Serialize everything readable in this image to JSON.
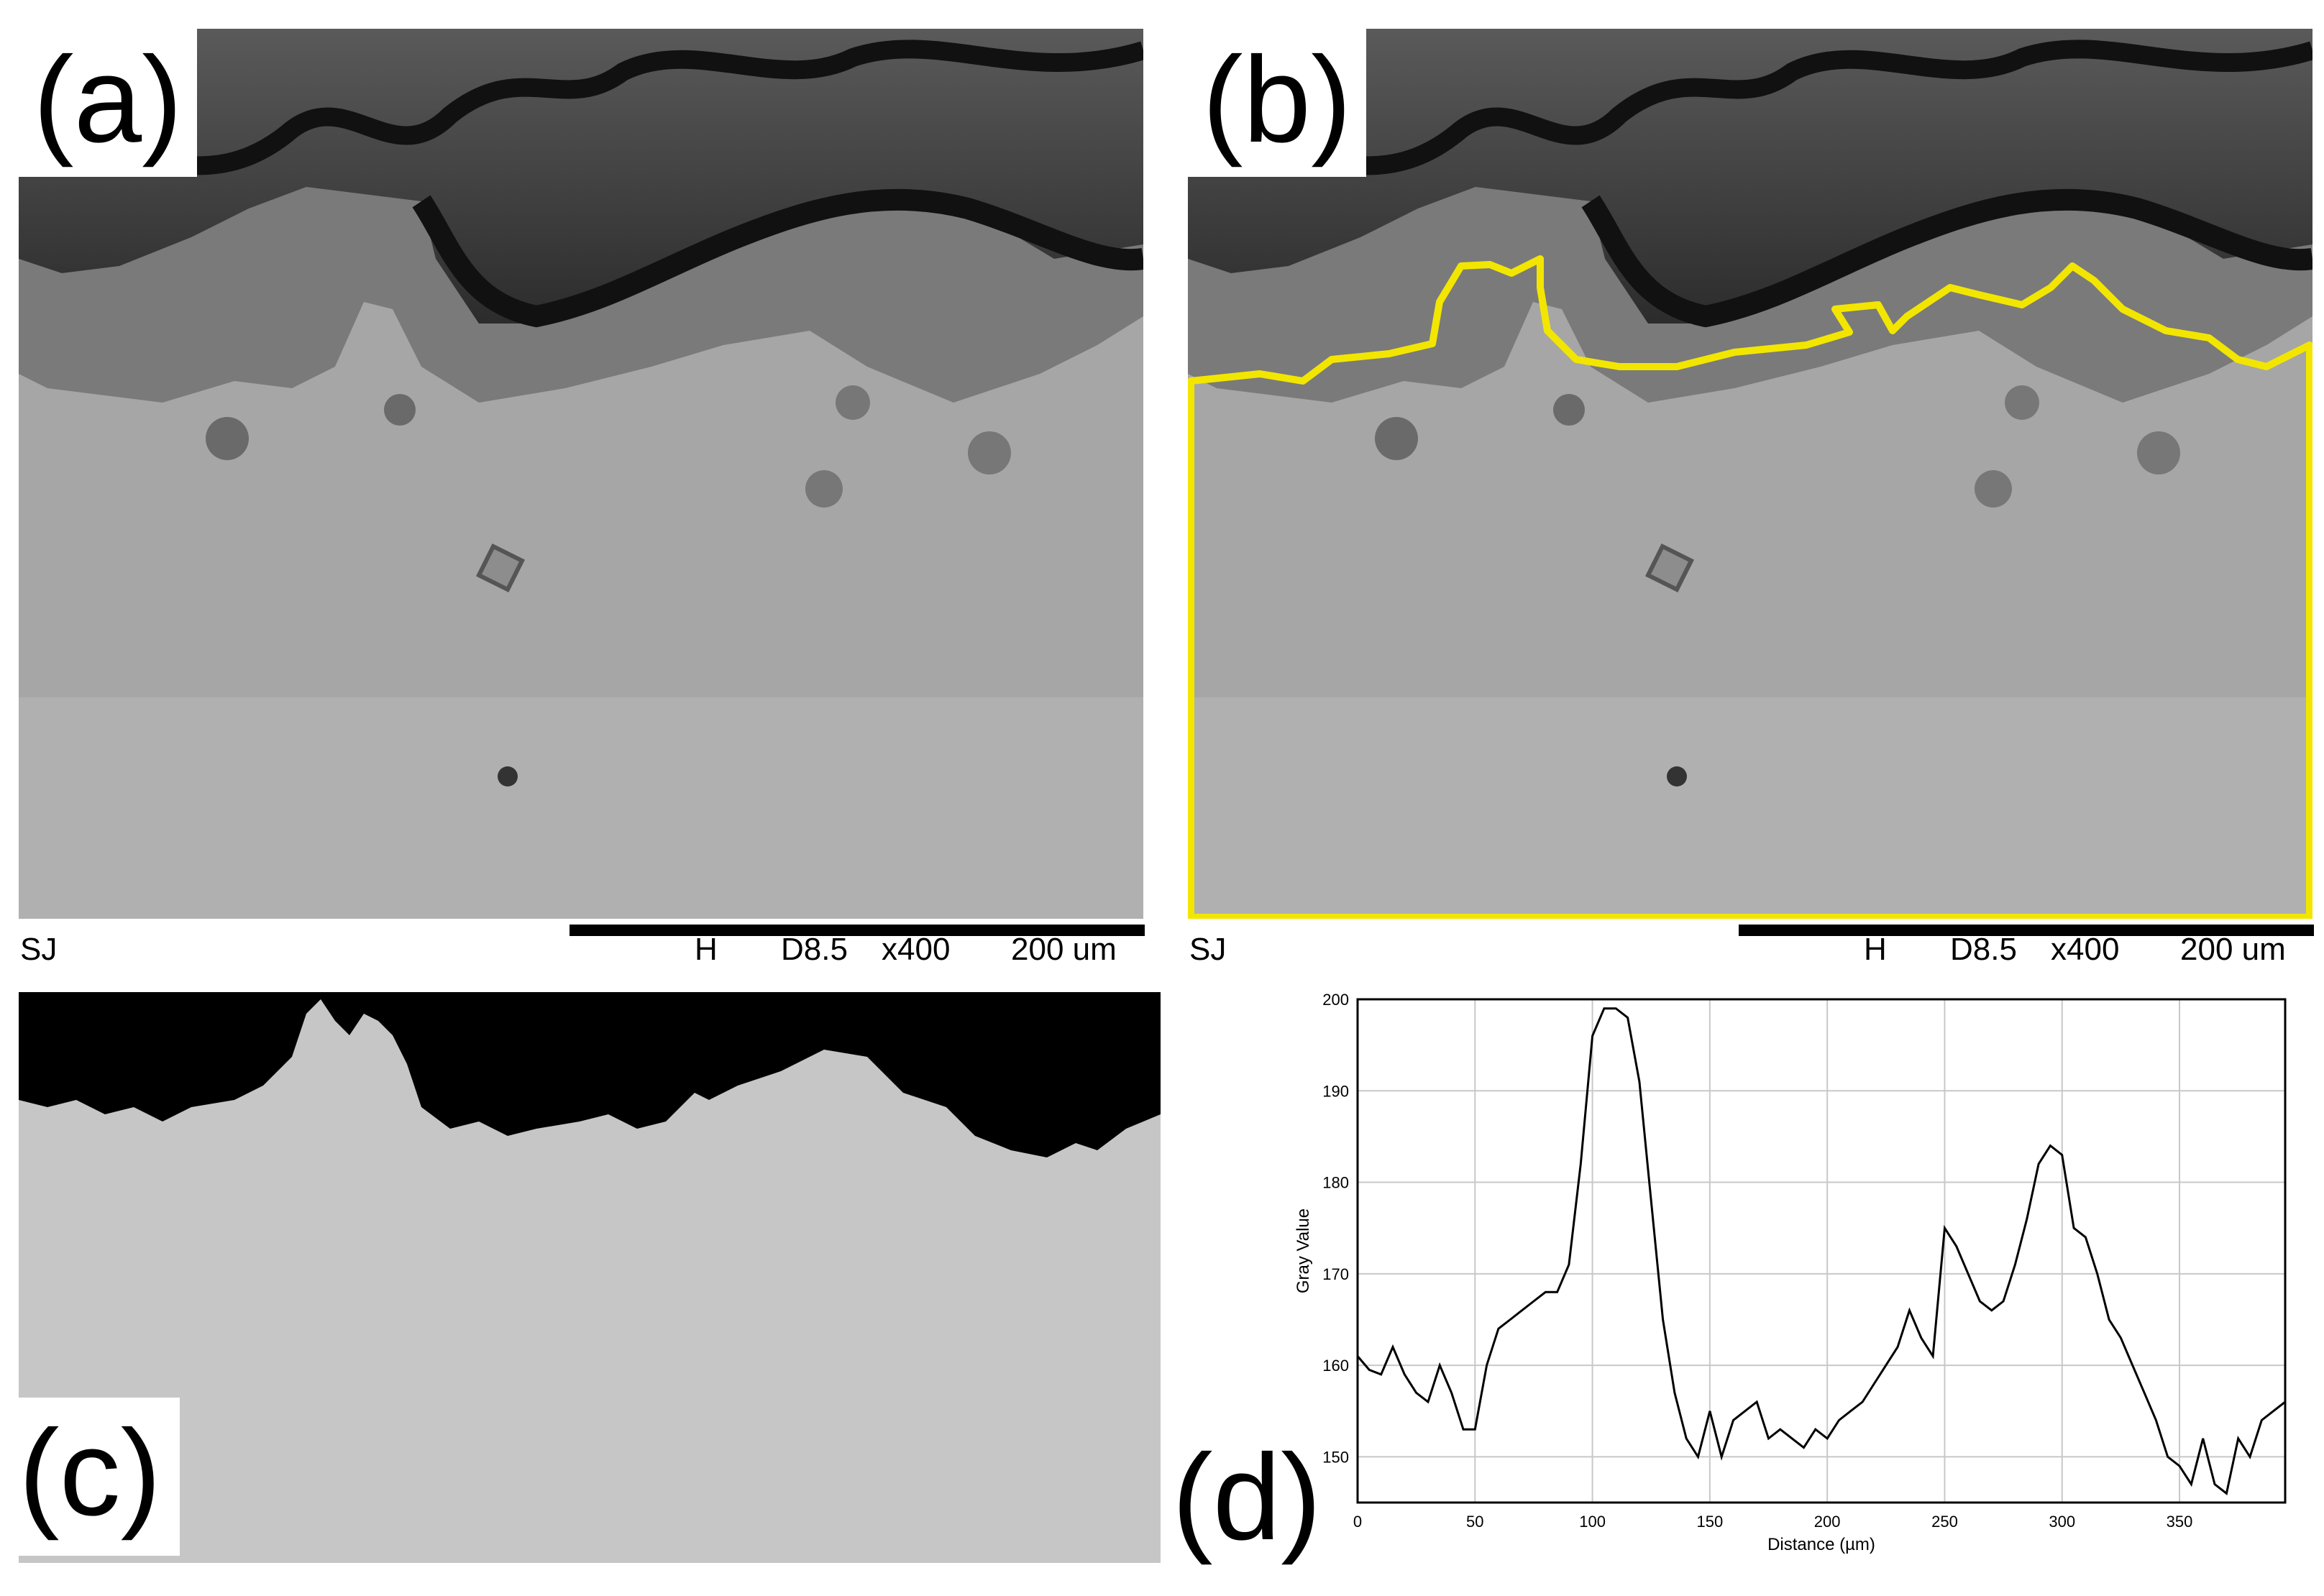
{
  "figure": {
    "panels": {
      "a": {
        "label": "(a)"
      },
      "b": {
        "label": "(b)"
      },
      "c": {
        "label": "(c)"
      },
      "d": {
        "label": "(d)"
      }
    },
    "sem_databar": {
      "left_text": "SJ",
      "mode": "H",
      "working_distance": "D8.5",
      "magnification": "x400",
      "scale": "200 um"
    },
    "overlay_color": "#f2e600",
    "chart_data": {
      "type": "line",
      "title": "",
      "xlabel": "Distance (µm)",
      "ylabel": "Gray Value",
      "xlim": [
        0,
        395
      ],
      "ylim": [
        145,
        200
      ],
      "xticks": [
        0,
        50,
        100,
        150,
        200,
        250,
        300,
        350
      ],
      "yticks": [
        150,
        160,
        170,
        180,
        190,
        200
      ],
      "grid": true,
      "series": [
        {
          "x": [
            0,
            5,
            10,
            15,
            20,
            25,
            30,
            35,
            40,
            45,
            50,
            55,
            60,
            65,
            70,
            75,
            80,
            85,
            90,
            95,
            100,
            105,
            110,
            115,
            120,
            125,
            130,
            135,
            140,
            145,
            150,
            155,
            160,
            165,
            170,
            175,
            180,
            185,
            190,
            195,
            200,
            205,
            210,
            215,
            220,
            225,
            230,
            235,
            240,
            245,
            250,
            255,
            260,
            265,
            270,
            275,
            280,
            285,
            290,
            295,
            300,
            305,
            310,
            315,
            320,
            325,
            330,
            335,
            340,
            345,
            350,
            355,
            360,
            365,
            370,
            375,
            380,
            385,
            390,
            395
          ],
          "y": [
            161,
            159.5,
            159,
            162,
            159,
            157,
            156,
            160,
            157,
            153,
            153,
            160,
            164,
            165,
            166,
            167,
            168,
            168,
            171,
            182,
            196,
            199,
            199,
            198,
            191,
            178,
            165,
            157,
            152,
            150,
            155,
            150,
            154,
            155,
            156,
            152,
            153,
            152,
            151,
            153,
            152,
            154,
            155,
            156,
            158,
            160,
            162,
            166,
            163,
            161,
            175,
            173,
            170,
            167,
            166,
            167,
            171,
            176,
            182,
            184,
            183,
            175,
            174,
            170,
            165,
            163,
            160,
            157,
            154,
            150,
            149,
            147,
            152,
            147,
            146,
            152,
            150,
            154,
            155,
            156
          ]
        }
      ]
    }
  }
}
